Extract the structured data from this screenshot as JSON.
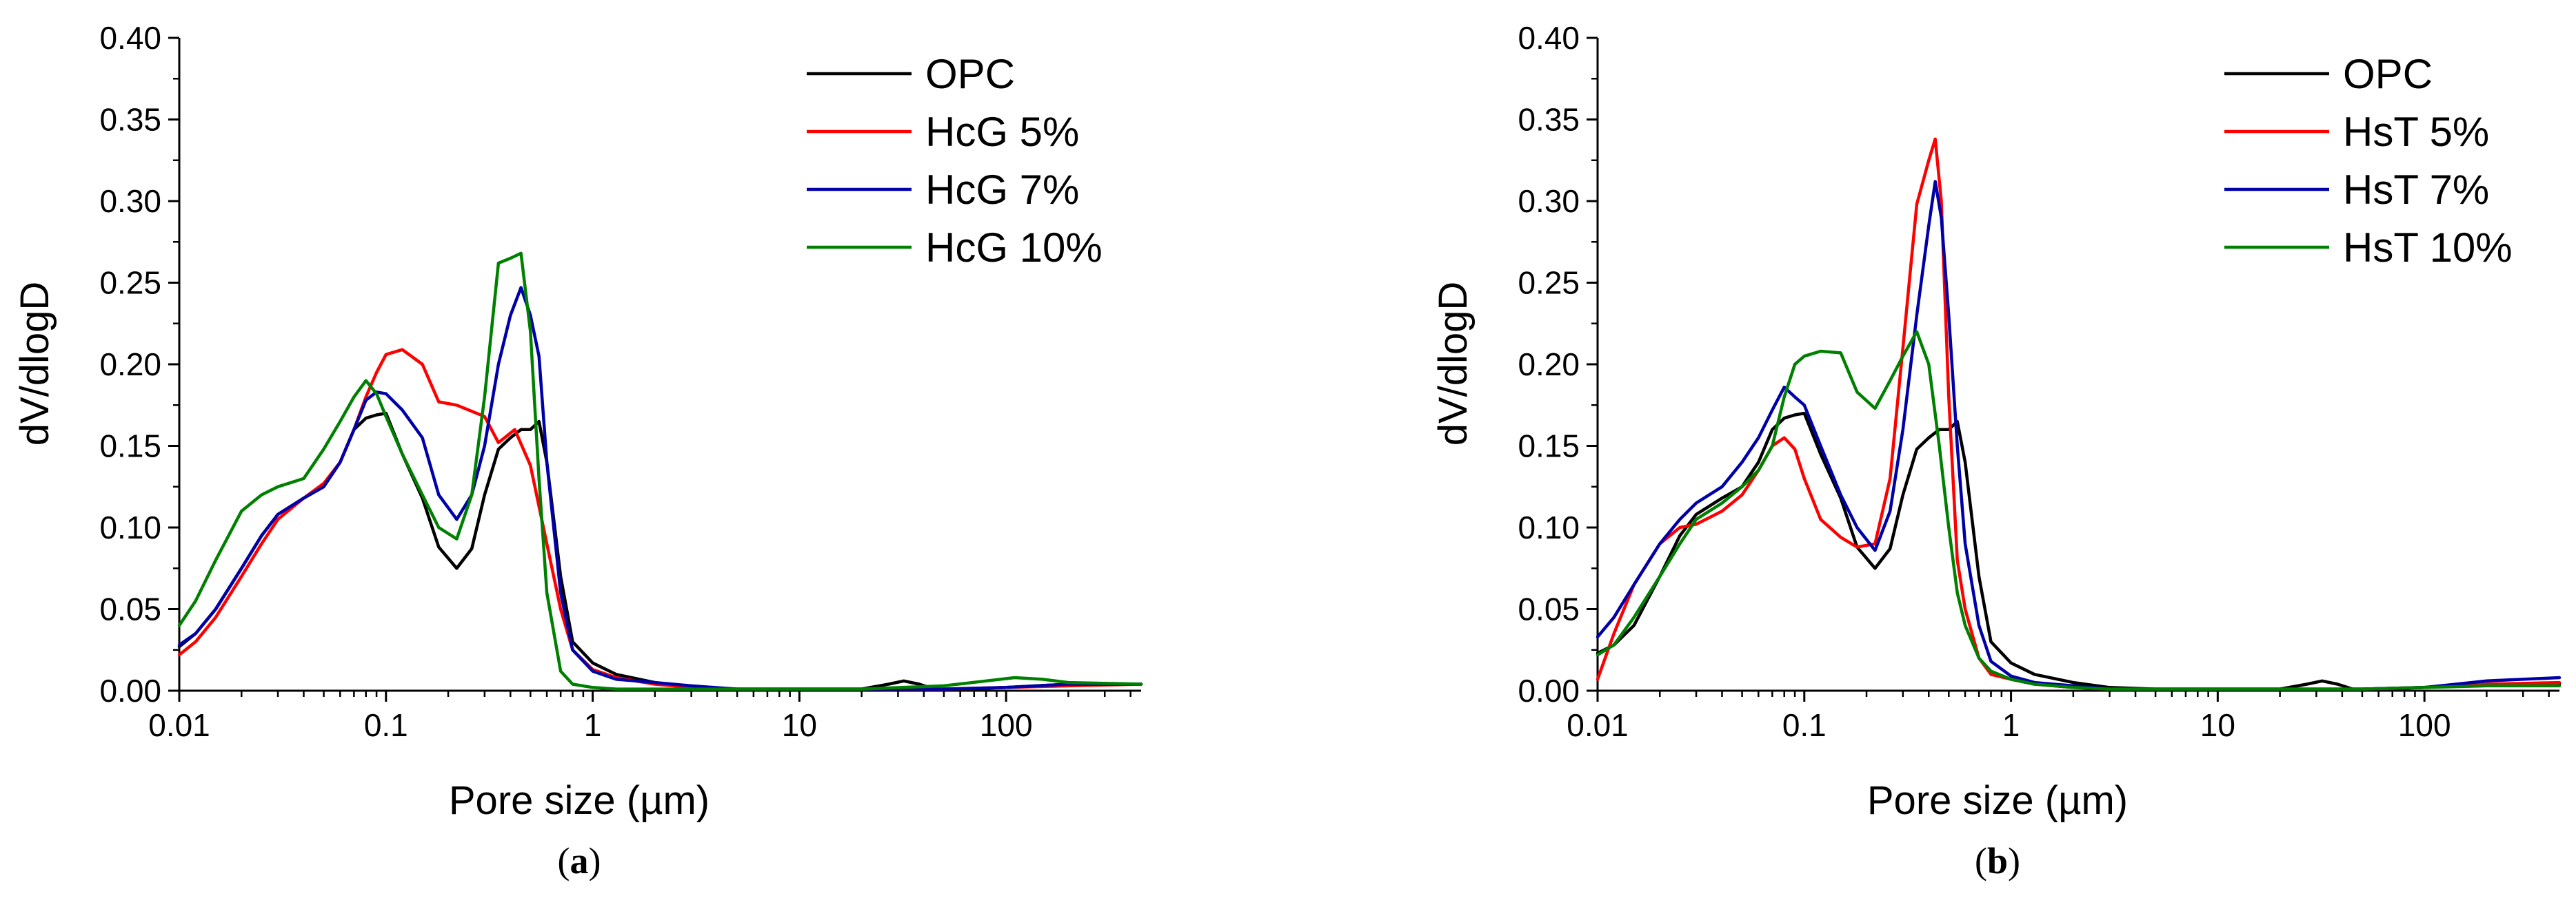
{
  "figure": {
    "panel_labels": [
      "a",
      "b"
    ]
  },
  "chart_data": [
    {
      "type": "line",
      "panel": "a",
      "title": "",
      "xlabel": "Pore size (µm)",
      "ylabel": "dV/dlogD",
      "xscale": "log",
      "xlim": [
        0.01,
        450
      ],
      "ylim": [
        0,
        0.4
      ],
      "xticks": [
        0.01,
        0.1,
        1,
        10,
        100
      ],
      "xtick_labels": [
        "0.01",
        "0.1",
        "1",
        "10",
        "100"
      ],
      "yticks": [
        0,
        0.05,
        0.1,
        0.15,
        0.2,
        0.25,
        0.3,
        0.35,
        0.4
      ],
      "ytick_labels": [
        "0.00",
        "0.05",
        "0.10",
        "0.15",
        "0.20",
        "0.25",
        "0.30",
        "0.35",
        "0.40"
      ],
      "legend_position": "top-right",
      "series": [
        {
          "name": "OPC",
          "color": "#000000",
          "x": [
            0.01,
            0.012,
            0.015,
            0.02,
            0.025,
            0.03,
            0.04,
            0.05,
            0.06,
            0.07,
            0.08,
            0.09,
            0.1,
            0.12,
            0.15,
            0.18,
            0.22,
            0.26,
            0.3,
            0.35,
            0.4,
            0.45,
            0.5,
            0.55,
            0.6,
            0.7,
            0.8,
            1,
            1.3,
            2,
            3,
            5,
            10,
            20,
            27,
            32,
            38,
            45,
            60,
            100,
            200,
            450
          ],
          "y": [
            0.027,
            0.035,
            0.05,
            0.075,
            0.095,
            0.108,
            0.118,
            0.125,
            0.14,
            0.16,
            0.167,
            0.169,
            0.17,
            0.145,
            0.118,
            0.088,
            0.075,
            0.087,
            0.12,
            0.148,
            0.155,
            0.16,
            0.16,
            0.165,
            0.14,
            0.07,
            0.03,
            0.017,
            0.01,
            0.005,
            0.002,
            0.001,
            0.001,
            0.001,
            0.004,
            0.006,
            0.004,
            0.001,
            0.001,
            0.002,
            0.004,
            0.004
          ]
        },
        {
          "name": "HcG 5%",
          "color": "#ff0000",
          "x": [
            0.01,
            0.012,
            0.015,
            0.02,
            0.025,
            0.03,
            0.04,
            0.05,
            0.06,
            0.07,
            0.08,
            0.09,
            0.1,
            0.12,
            0.15,
            0.18,
            0.22,
            0.3,
            0.35,
            0.42,
            0.5,
            0.6,
            0.7,
            0.8,
            1,
            1.3,
            2,
            3,
            5,
            10,
            20,
            50,
            100,
            200,
            450
          ],
          "y": [
            0.022,
            0.03,
            0.045,
            0.07,
            0.09,
            0.105,
            0.118,
            0.127,
            0.14,
            0.16,
            0.18,
            0.195,
            0.206,
            0.209,
            0.2,
            0.177,
            0.175,
            0.168,
            0.152,
            0.16,
            0.138,
            0.09,
            0.05,
            0.025,
            0.013,
            0.008,
            0.004,
            0.002,
            0.001,
            0.001,
            0.001,
            0.001,
            0.002,
            0.003,
            0.004
          ]
        },
        {
          "name": "HcG 7%",
          "color": "#0000a8",
          "x": [
            0.01,
            0.012,
            0.015,
            0.02,
            0.025,
            0.03,
            0.04,
            0.05,
            0.06,
            0.07,
            0.08,
            0.09,
            0.1,
            0.12,
            0.15,
            0.18,
            0.22,
            0.26,
            0.3,
            0.35,
            0.4,
            0.45,
            0.5,
            0.55,
            0.6,
            0.7,
            0.8,
            1,
            1.3,
            2,
            3,
            5,
            10,
            20,
            50,
            100,
            200,
            450
          ],
          "y": [
            0.028,
            0.035,
            0.05,
            0.075,
            0.095,
            0.108,
            0.118,
            0.125,
            0.14,
            0.16,
            0.178,
            0.183,
            0.182,
            0.172,
            0.155,
            0.12,
            0.105,
            0.12,
            0.15,
            0.2,
            0.23,
            0.247,
            0.23,
            0.205,
            0.14,
            0.06,
            0.025,
            0.012,
            0.007,
            0.005,
            0.003,
            0.001,
            0.001,
            0.001,
            0.001,
            0.002,
            0.004,
            0.004
          ]
        },
        {
          "name": "HcG 10%",
          "color": "#008000",
          "x": [
            0.01,
            0.012,
            0.015,
            0.02,
            0.025,
            0.03,
            0.04,
            0.05,
            0.06,
            0.07,
            0.08,
            0.09,
            0.1,
            0.12,
            0.15,
            0.18,
            0.22,
            0.26,
            0.3,
            0.35,
            0.4,
            0.45,
            0.5,
            0.55,
            0.6,
            0.7,
            0.8,
            1,
            1.3,
            2,
            3,
            5,
            10,
            20,
            50,
            80,
            110,
            150,
            200,
            450
          ],
          "y": [
            0.04,
            0.055,
            0.08,
            0.11,
            0.12,
            0.125,
            0.13,
            0.148,
            0.165,
            0.18,
            0.19,
            0.182,
            0.168,
            0.145,
            0.12,
            0.1,
            0.093,
            0.12,
            0.18,
            0.262,
            0.265,
            0.268,
            0.22,
            0.13,
            0.06,
            0.012,
            0.004,
            0.002,
            0.001,
            0.001,
            0.001,
            0.001,
            0.001,
            0.001,
            0.003,
            0.006,
            0.008,
            0.007,
            0.005,
            0.004
          ]
        }
      ]
    },
    {
      "type": "line",
      "panel": "b",
      "title": "",
      "xlabel": "Pore size (µm)",
      "ylabel": "dV/dlogD",
      "xscale": "log",
      "xlim": [
        0.01,
        450
      ],
      "ylim": [
        0,
        0.4
      ],
      "xticks": [
        0.01,
        0.1,
        1,
        10,
        100
      ],
      "xtick_labels": [
        "0.01",
        "0.1",
        "1",
        "10",
        "100"
      ],
      "yticks": [
        0,
        0.05,
        0.1,
        0.15,
        0.2,
        0.25,
        0.3,
        0.35,
        0.4
      ],
      "ytick_labels": [
        "0.00",
        "0.05",
        "0.10",
        "0.15",
        "0.20",
        "0.25",
        "0.30",
        "0.35",
        "0.40"
      ],
      "legend_position": "top-right",
      "series": [
        {
          "name": "OPC",
          "color": "#000000",
          "x": [
            0.01,
            0.012,
            0.015,
            0.02,
            0.025,
            0.03,
            0.04,
            0.05,
            0.06,
            0.07,
            0.08,
            0.09,
            0.1,
            0.12,
            0.15,
            0.18,
            0.22,
            0.26,
            0.3,
            0.35,
            0.4,
            0.45,
            0.5,
            0.55,
            0.6,
            0.7,
            0.8,
            1,
            1.3,
            2,
            3,
            5,
            10,
            20,
            27,
            32,
            38,
            45,
            60,
            100,
            200,
            450
          ],
          "y": [
            0.023,
            0.028,
            0.04,
            0.07,
            0.095,
            0.108,
            0.118,
            0.125,
            0.14,
            0.16,
            0.167,
            0.169,
            0.17,
            0.145,
            0.118,
            0.088,
            0.075,
            0.087,
            0.12,
            0.148,
            0.155,
            0.16,
            0.16,
            0.165,
            0.14,
            0.07,
            0.03,
            0.017,
            0.01,
            0.005,
            0.002,
            0.001,
            0.001,
            0.001,
            0.004,
            0.006,
            0.004,
            0.001,
            0.001,
            0.002,
            0.004,
            0.004
          ]
        },
        {
          "name": "HsT 5%",
          "color": "#ff0000",
          "x": [
            0.01,
            0.012,
            0.015,
            0.02,
            0.025,
            0.03,
            0.04,
            0.05,
            0.06,
            0.07,
            0.08,
            0.09,
            0.1,
            0.12,
            0.15,
            0.18,
            0.22,
            0.26,
            0.3,
            0.35,
            0.4,
            0.43,
            0.46,
            0.5,
            0.55,
            0.6,
            0.7,
            0.8,
            1,
            1.3,
            2,
            3,
            5,
            10,
            20,
            50,
            100,
            200,
            450
          ],
          "y": [
            0.007,
            0.035,
            0.065,
            0.09,
            0.1,
            0.102,
            0.11,
            0.12,
            0.135,
            0.15,
            0.155,
            0.148,
            0.13,
            0.105,
            0.094,
            0.088,
            0.09,
            0.13,
            0.21,
            0.298,
            0.325,
            0.338,
            0.3,
            0.18,
            0.08,
            0.05,
            0.02,
            0.01,
            0.007,
            0.004,
            0.002,
            0.001,
            0.001,
            0.001,
            0.001,
            0.001,
            0.002,
            0.004,
            0.005
          ]
        },
        {
          "name": "HsT 7%",
          "color": "#0000a8",
          "x": [
            0.01,
            0.012,
            0.015,
            0.02,
            0.025,
            0.03,
            0.04,
            0.05,
            0.06,
            0.07,
            0.08,
            0.09,
            0.1,
            0.12,
            0.15,
            0.18,
            0.22,
            0.26,
            0.3,
            0.35,
            0.4,
            0.43,
            0.46,
            0.5,
            0.55,
            0.6,
            0.7,
            0.8,
            1,
            1.3,
            2,
            3,
            5,
            10,
            20,
            50,
            100,
            200,
            450
          ],
          "y": [
            0.033,
            0.045,
            0.065,
            0.09,
            0.105,
            0.115,
            0.125,
            0.14,
            0.155,
            0.172,
            0.186,
            0.18,
            0.175,
            0.15,
            0.12,
            0.1,
            0.086,
            0.11,
            0.16,
            0.23,
            0.285,
            0.312,
            0.29,
            0.23,
            0.15,
            0.09,
            0.04,
            0.018,
            0.009,
            0.005,
            0.003,
            0.001,
            0.001,
            0.001,
            0.001,
            0.001,
            0.002,
            0.006,
            0.008
          ]
        },
        {
          "name": "HsT 10%",
          "color": "#008000",
          "x": [
            0.01,
            0.012,
            0.015,
            0.02,
            0.025,
            0.03,
            0.04,
            0.05,
            0.06,
            0.07,
            0.08,
            0.09,
            0.1,
            0.12,
            0.15,
            0.18,
            0.22,
            0.26,
            0.3,
            0.35,
            0.4,
            0.45,
            0.5,
            0.55,
            0.6,
            0.7,
            0.8,
            1,
            1.3,
            2,
            3,
            5,
            10,
            20,
            50,
            100,
            200,
            450
          ],
          "y": [
            0.022,
            0.028,
            0.045,
            0.07,
            0.09,
            0.105,
            0.115,
            0.125,
            0.135,
            0.15,
            0.18,
            0.2,
            0.205,
            0.208,
            0.207,
            0.183,
            0.173,
            0.19,
            0.205,
            0.22,
            0.2,
            0.15,
            0.1,
            0.06,
            0.04,
            0.02,
            0.012,
            0.007,
            0.004,
            0.002,
            0.001,
            0.001,
            0.001,
            0.001,
            0.001,
            0.002,
            0.003,
            0.003
          ]
        }
      ]
    }
  ]
}
